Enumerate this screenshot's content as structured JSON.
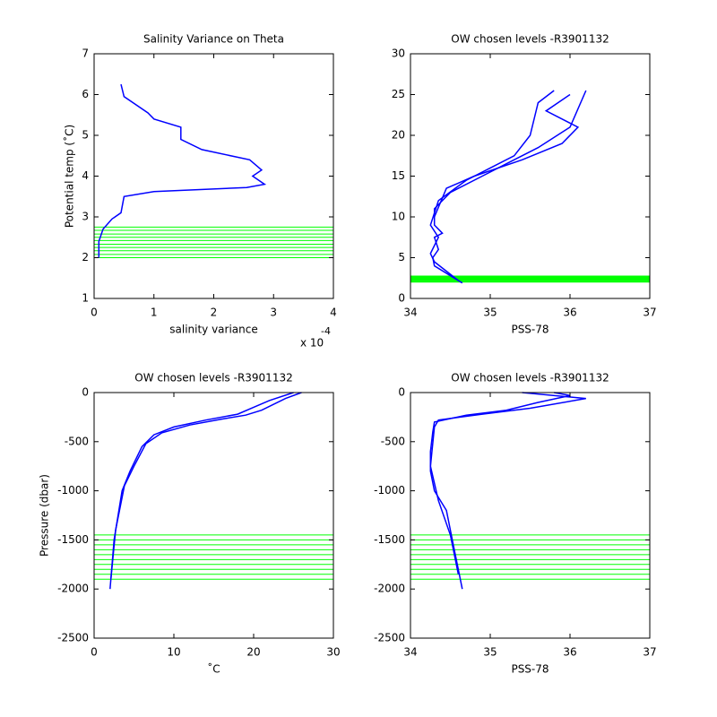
{
  "chart_data": [
    {
      "type": "line",
      "title": "Salinity Variance on Theta",
      "xlabel": "salinity variance",
      "ylabel": "Potential temp (˚C)",
      "x_multiplier": "x 10",
      "x_exponent": "-4",
      "xlim": [
        0,
        4
      ],
      "ylim": [
        1,
        7
      ],
      "xticks": [
        0,
        1,
        2,
        3,
        4
      ],
      "yticks": [
        1,
        2,
        3,
        4,
        5,
        6,
        7
      ],
      "series": [
        {
          "color": "#0000ff",
          "x": [
            0.45,
            0.5,
            0.9,
            1.0,
            1.45,
            1.45,
            1.8,
            2.6,
            2.8,
            2.65,
            2.85,
            2.55,
            1.0,
            0.5,
            0.45,
            0.3,
            0.15,
            0.08,
            0.08
          ],
          "values": [
            6.25,
            5.95,
            5.55,
            5.4,
            5.2,
            4.9,
            4.65,
            4.4,
            4.15,
            4.0,
            3.8,
            3.72,
            3.62,
            3.5,
            3.1,
            2.95,
            2.7,
            2.4,
            2.0
          ]
        }
      ],
      "hlines": {
        "color": "#00ff00",
        "values": [
          2.0,
          2.08,
          2.17,
          2.25,
          2.33,
          2.42,
          2.5,
          2.58,
          2.67,
          2.75
        ]
      }
    },
    {
      "type": "line",
      "title": "OW chosen levels -R3901132",
      "xlabel": "PSS-78",
      "xlim": [
        34,
        37
      ],
      "ylim": [
        0,
        30
      ],
      "xticks": [
        34,
        35,
        36,
        37
      ],
      "yticks": [
        0,
        5,
        10,
        15,
        20,
        25,
        30
      ],
      "series": [
        {
          "color": "#0000ff",
          "x": [
            34.65,
            34.55,
            34.3,
            34.28,
            34.35,
            34.3,
            34.4,
            34.3,
            34.3,
            34.5,
            34.9,
            35.2,
            35.6,
            36.0,
            36.2
          ],
          "values": [
            1.9,
            2.5,
            4,
            5,
            6,
            7.5,
            8,
            9,
            11,
            13,
            15,
            16.5,
            18.5,
            21,
            25.5
          ]
        },
        {
          "color": "#0000ff",
          "x": [
            34.6,
            34.3,
            34.25,
            34.35,
            34.25,
            34.35,
            34.7,
            35.0,
            35.3,
            35.5,
            35.6,
            35.8
          ],
          "values": [
            2.2,
            4.5,
            5.5,
            7.5,
            9,
            12,
            14.5,
            16,
            17.5,
            20,
            24,
            25.5
          ]
        },
        {
          "color": "#0000ff",
          "x": [
            34.3,
            34.45,
            34.8,
            35.4,
            35.9,
            36.1,
            35.7,
            36.0
          ],
          "values": [
            10,
            13.5,
            15,
            17,
            19,
            21,
            23,
            25
          ]
        }
      ],
      "hlines": {
        "color": "#00ff00",
        "values": [
          2.0,
          2.08,
          2.17,
          2.25,
          2.33,
          2.42,
          2.5,
          2.58,
          2.67,
          2.75
        ]
      }
    },
    {
      "type": "line",
      "title": "OW chosen levels -R3901132",
      "xlabel": "˚C",
      "ylabel": "Pressure (dbar)",
      "xlim": [
        0,
        30
      ],
      "ylim": [
        -2500,
        0
      ],
      "xticks": [
        0,
        10,
        20,
        30
      ],
      "yticks": [
        -2500,
        -2000,
        -1500,
        -1000,
        -500,
        0
      ],
      "series": [
        {
          "color": "#0000ff",
          "x": [
            2,
            2.5,
            3.5,
            4.5,
            6,
            7.5,
            10,
            14,
            18,
            20,
            22,
            25
          ],
          "values": [
            -2000,
            -1500,
            -1000,
            -800,
            -550,
            -430,
            -350,
            -280,
            -220,
            -150,
            -80,
            0
          ]
        },
        {
          "color": "#0000ff",
          "x": [
            2.1,
            2.7,
            3.8,
            5,
            6.5,
            8.5,
            12,
            16,
            19,
            21,
            24,
            26
          ],
          "values": [
            -1900,
            -1400,
            -950,
            -750,
            -520,
            -410,
            -330,
            -270,
            -230,
            -180,
            -60,
            0
          ]
        }
      ],
      "hlines": {
        "color": "#00ff00",
        "values": [
          -1450,
          -1500,
          -1550,
          -1600,
          -1650,
          -1700,
          -1750,
          -1800,
          -1850,
          -1900
        ]
      }
    },
    {
      "type": "line",
      "title": "OW chosen levels -R3901132",
      "xlabel": "PSS-78",
      "xlim": [
        34,
        37
      ],
      "ylim": [
        -2500,
        0
      ],
      "xticks": [
        34,
        35,
        36,
        37
      ],
      "yticks": [
        -2500,
        -2000,
        -1500,
        -1000,
        -500,
        0
      ],
      "series": [
        {
          "color": "#0000ff",
          "x": [
            34.65,
            34.55,
            34.45,
            34.3,
            34.25,
            34.25,
            34.28,
            34.3,
            34.7,
            35.2,
            35.6,
            36.0,
            35.8
          ],
          "values": [
            -2000,
            -1600,
            -1200,
            -1000,
            -800,
            -600,
            -400,
            -300,
            -230,
            -180,
            -100,
            -30,
            0
          ]
        },
        {
          "color": "#0000ff",
          "x": [
            34.6,
            34.5,
            34.35,
            34.25,
            34.3,
            34.35,
            34.9,
            35.5,
            36.2,
            35.4
          ],
          "values": [
            -1850,
            -1450,
            -1100,
            -750,
            -350,
            -280,
            -220,
            -160,
            -60,
            0
          ]
        }
      ],
      "hlines": {
        "color": "#00ff00",
        "values": [
          -1450,
          -1500,
          -1550,
          -1600,
          -1650,
          -1700,
          -1750,
          -1800,
          -1850,
          -1900
        ]
      }
    }
  ]
}
